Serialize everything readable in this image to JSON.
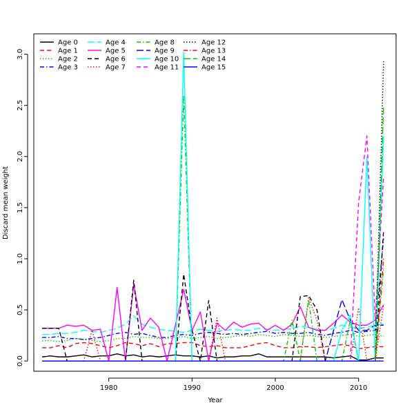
{
  "chart_data": {
    "type": "line",
    "title": "",
    "xlabel": "Year",
    "ylabel": "Discard mean weight",
    "xlim": [
      1971,
      2014.5
    ],
    "ylim": [
      -0.1,
      3.2
    ],
    "x_ticks": [
      1980,
      1990,
      2000,
      2010
    ],
    "x_tick_labels": [
      "1980",
      "1990",
      "2000",
      "2010"
    ],
    "y_ticks": [
      0.0,
      0.5,
      1.0,
      1.5,
      2.0,
      2.5,
      3.0
    ],
    "y_tick_labels": [
      "0.0",
      "0.5",
      "1.0",
      "1.5",
      "2.0",
      "2.5",
      "3.0"
    ],
    "grid": false,
    "legend_position": "top-left",
    "x": [
      1972,
      1973,
      1974,
      1975,
      1976,
      1977,
      1978,
      1979,
      1980,
      1981,
      1982,
      1983,
      1984,
      1985,
      1986,
      1987,
      1988,
      1989,
      1990,
      1991,
      1992,
      1993,
      1994,
      1995,
      1996,
      1997,
      1998,
      1999,
      2000,
      2001,
      2002,
      2003,
      2004,
      2005,
      2006,
      2007,
      2008,
      2009,
      2010,
      2011,
      2012,
      2013
    ],
    "series": [
      {
        "name": "Age 0",
        "color": "#000000",
        "dash": "solid",
        "values": [
          0.04,
          0.05,
          0.04,
          0.04,
          0.05,
          0.06,
          0.04,
          0.05,
          0.05,
          0.07,
          0.05,
          0.06,
          0.04,
          0.05,
          0.04,
          0.05,
          0.06,
          0.05,
          0.05,
          0.04,
          0.05,
          0.03,
          0.04,
          0.04,
          0.05,
          0.05,
          0.07,
          0.04,
          0.04,
          0.04,
          0.04,
          0.04,
          0.04,
          0.04,
          0.04,
          0.03,
          0.04,
          0.05,
          0.01,
          0.01,
          0.03,
          0.03
        ]
      },
      {
        "name": "Age 1",
        "color": "#ff0000",
        "dash": "dashed",
        "values": [
          0.13,
          0.13,
          0.15,
          0.13,
          0.17,
          0.18,
          0.17,
          0.15,
          0.13,
          0.15,
          0.18,
          0.17,
          0.15,
          0.17,
          0.14,
          0.17,
          0.17,
          0.18,
          0.18,
          0.15,
          0.14,
          0.15,
          0.13,
          0.13,
          0.13,
          0.15,
          0.17,
          0.18,
          0.15,
          0.13,
          0.13,
          0.14,
          0.14,
          0.13,
          0.14,
          0.15,
          0.16,
          0.15,
          0.12,
          0.13,
          0.14,
          0.14
        ]
      },
      {
        "name": "Age 2",
        "color": "#00cc00",
        "dash": "dotted",
        "values": [
          0.2,
          0.2,
          0.19,
          0.2,
          0.22,
          0.21,
          0.2,
          0.19,
          0.2,
          0.22,
          0.22,
          0.24,
          0.23,
          0.23,
          0.22,
          0.22,
          0.23,
          0.24,
          0.22,
          0.23,
          0.24,
          0.22,
          0.23,
          0.24,
          0.25,
          0.24,
          0.26,
          0.25,
          0.24,
          0.26,
          0.25,
          0.24,
          0.25,
          0.24,
          0.23,
          0.24,
          0.25,
          0.26,
          0.24,
          0.25,
          0.26,
          0.24
        ]
      },
      {
        "name": "Age 3",
        "color": "#0000ff",
        "dash": "dashdot",
        "values": [
          0.23,
          0.23,
          0.24,
          0.22,
          0.22,
          0.21,
          0.22,
          0.23,
          0.25,
          0.27,
          0.28,
          0.26,
          0.27,
          0.25,
          0.23,
          0.23,
          0.25,
          0.26,
          0.25,
          0.27,
          0.28,
          0.27,
          0.26,
          0.27,
          0.26,
          0.27,
          0.28,
          0.29,
          0.27,
          0.28,
          0.27,
          0.27,
          0.28,
          0.26,
          0.25,
          0.27,
          0.28,
          0.3,
          0.28,
          0.29,
          0.3,
          1.2
        ]
      },
      {
        "name": "Age 4",
        "color": "#00ffff",
        "dash": "longdash",
        "values": [
          0.26,
          0.26,
          0.27,
          0.27,
          0.28,
          0.3,
          0.29,
          0.28,
          0.3,
          0.32,
          0.36,
          0.44,
          0.36,
          0.33,
          0.31,
          0.3,
          0.29,
          0.28,
          0.3,
          0.31,
          0.3,
          0.29,
          0.3,
          0.31,
          0.3,
          0.3,
          0.32,
          0.31,
          0.3,
          0.31,
          0.32,
          0.34,
          0.33,
          0.31,
          0.3,
          0.32,
          0.35,
          0.33,
          0.32,
          0.33,
          0.35,
          0.36
        ]
      },
      {
        "name": "Age 5",
        "color": "#ff00ff",
        "dash": "solid",
        "values": [
          0.32,
          0.32,
          0.32,
          0.35,
          0.34,
          0.35,
          0.3,
          0.31,
          0.0,
          0.72,
          0.0,
          0.75,
          0.3,
          0.42,
          0.33,
          0.0,
          0.35,
          0.7,
          0.3,
          0.48,
          0.0,
          0.37,
          0.3,
          0.38,
          0.33,
          0.36,
          0.37,
          0.3,
          0.35,
          0.3,
          0.36,
          0.53,
          0.33,
          0.3,
          0.3,
          0.37,
          0.45,
          0.38,
          0.35,
          0.35,
          0.4,
          0.55
        ]
      },
      {
        "name": "Age 6",
        "color": "#000000",
        "dash": "dashed",
        "values": [
          0.32,
          0.32,
          0.32,
          0.0,
          0.0,
          0.0,
          0.0,
          0.0,
          0.0,
          0.0,
          0.0,
          0.79,
          0.0,
          0.0,
          0.0,
          0.0,
          0.0,
          0.85,
          0.3,
          0.0,
          0.59,
          0.0,
          0.0,
          0.0,
          0.0,
          0.0,
          0.0,
          0.0,
          0.0,
          0.0,
          0.0,
          0.63,
          0.64,
          0.5,
          0.0,
          0.0,
          0.0,
          0.0,
          0.0,
          0.0,
          0.0,
          1.28
        ]
      },
      {
        "name": "Age 7",
        "color": "#ff0000",
        "dash": "dotted",
        "values": [
          0.0,
          0.0,
          0.0,
          0.0,
          0.0,
          0.0,
          0.3,
          0.0,
          0.0,
          0.0,
          0.0,
          0.0,
          0.0,
          0.0,
          0.0,
          0.0,
          0.0,
          0.0,
          0.0,
          0.0,
          0.0,
          0.42,
          0.0,
          0.0,
          0.0,
          0.0,
          0.0,
          0.0,
          0.0,
          0.0,
          0.0,
          0.0,
          0.62,
          0.4,
          0.0,
          0.0,
          0.0,
          0.0,
          0.52,
          0.0,
          0.0,
          0.55
        ]
      },
      {
        "name": "Age 8",
        "color": "#00cc00",
        "dash": "dashdot",
        "values": [
          0.0,
          0.0,
          0.0,
          0.0,
          0.0,
          0.0,
          0.0,
          0.0,
          0.0,
          0.0,
          0.0,
          0.0,
          0.0,
          0.0,
          0.0,
          0.0,
          0.0,
          2.6,
          0.0,
          0.0,
          0.0,
          0.0,
          0.0,
          0.0,
          0.0,
          0.0,
          0.0,
          0.0,
          0.0,
          0.0,
          0.4,
          0.0,
          0.6,
          0.0,
          0.0,
          0.0,
          0.0,
          0.4,
          0.0,
          0.0,
          0.0,
          0.9
        ]
      },
      {
        "name": "Age 9",
        "color": "#0000ff",
        "dash": "longdash",
        "values": [
          0.0,
          0.0,
          0.0,
          0.0,
          0.0,
          0.0,
          0.0,
          0.0,
          0.0,
          0.0,
          0.0,
          0.0,
          0.0,
          0.0,
          0.0,
          0.0,
          0.0,
          0.0,
          0.0,
          0.0,
          0.0,
          0.0,
          0.0,
          0.0,
          0.0,
          0.0,
          0.0,
          0.0,
          0.0,
          0.0,
          0.0,
          0.0,
          0.0,
          0.0,
          0.0,
          0.3,
          0.6,
          0.4,
          0.3,
          0.3,
          0.35,
          0.35
        ]
      },
      {
        "name": "Age 10",
        "color": "#00ffff",
        "dash": "solid",
        "values": [
          0.0,
          0.0,
          0.0,
          0.0,
          0.0,
          0.0,
          0.0,
          0.0,
          0.0,
          0.0,
          0.0,
          0.0,
          0.0,
          0.0,
          0.0,
          0.0,
          0.0,
          3.02,
          0.0,
          0.0,
          0.0,
          0.0,
          0.0,
          0.0,
          0.0,
          0.0,
          0.0,
          0.0,
          0.0,
          0.0,
          0.0,
          0.0,
          0.0,
          0.0,
          0.0,
          0.0,
          0.3,
          0.45,
          0.0,
          2.0,
          0.0,
          2.2
        ]
      },
      {
        "name": "Age 11",
        "color": "#ff00ff",
        "dash": "dashed",
        "values": [
          0.0,
          0.0,
          0.0,
          0.0,
          0.0,
          0.0,
          0.0,
          0.0,
          0.0,
          0.0,
          0.0,
          0.0,
          0.0,
          0.0,
          0.0,
          0.0,
          0.0,
          0.0,
          0.0,
          0.0,
          0.0,
          0.0,
          0.0,
          0.0,
          0.0,
          0.0,
          0.0,
          0.0,
          0.0,
          0.0,
          0.0,
          0.0,
          0.0,
          0.0,
          0.0,
          0.0,
          0.0,
          0.0,
          1.55,
          2.2,
          0.4,
          1.8
        ]
      },
      {
        "name": "Age 12",
        "color": "#000000",
        "dash": "dotted",
        "values": [
          0.0,
          0.0,
          0.0,
          0.0,
          0.0,
          0.0,
          0.0,
          0.0,
          0.0,
          0.0,
          0.0,
          0.0,
          0.0,
          0.0,
          0.0,
          0.0,
          0.0,
          0.0,
          0.0,
          0.0,
          0.0,
          0.0,
          0.0,
          0.0,
          0.0,
          0.0,
          0.0,
          0.0,
          0.0,
          0.0,
          0.0,
          0.0,
          0.0,
          0.0,
          0.0,
          0.0,
          0.0,
          0.0,
          0.0,
          0.0,
          0.0,
          2.93
        ]
      },
      {
        "name": "Age 13",
        "color": "#ff0000",
        "dash": "dashdot",
        "values": [
          0.0,
          0.0,
          0.0,
          0.0,
          0.0,
          0.0,
          0.0,
          0.0,
          0.0,
          0.0,
          0.0,
          0.0,
          0.0,
          0.0,
          0.0,
          0.0,
          0.0,
          0.0,
          0.0,
          0.0,
          0.0,
          0.0,
          0.0,
          0.0,
          0.0,
          0.0,
          0.0,
          0.0,
          0.0,
          0.0,
          0.0,
          0.0,
          0.0,
          0.0,
          0.0,
          0.0,
          0.0,
          0.0,
          0.0,
          0.0,
          0.0,
          1.0
        ]
      },
      {
        "name": "Age 14",
        "color": "#00cc00",
        "dash": "longdash",
        "values": [
          0.0,
          0.0,
          0.0,
          0.0,
          0.0,
          0.0,
          0.0,
          0.0,
          0.0,
          0.0,
          0.0,
          0.0,
          0.0,
          0.0,
          0.0,
          0.0,
          0.0,
          0.0,
          0.0,
          0.0,
          0.0,
          0.0,
          0.0,
          0.0,
          0.0,
          0.0,
          0.0,
          0.0,
          0.0,
          0.0,
          0.0,
          0.0,
          0.0,
          0.0,
          0.0,
          0.0,
          0.0,
          0.0,
          0.0,
          0.0,
          0.0,
          2.5
        ]
      },
      {
        "name": "Age 15",
        "color": "#0000ff",
        "dash": "solid",
        "values": [
          0.0,
          0.0,
          0.0,
          0.0,
          0.0,
          0.0,
          0.0,
          0.0,
          0.0,
          0.0,
          0.0,
          0.0,
          0.0,
          0.0,
          0.0,
          0.0,
          0.0,
          0.0,
          0.0,
          0.0,
          0.0,
          0.0,
          0.0,
          0.0,
          0.0,
          0.0,
          0.0,
          0.0,
          0.0,
          0.0,
          0.0,
          0.0,
          0.0,
          0.0,
          0.0,
          0.0,
          0.0,
          0.0,
          0.0,
          0.0,
          0.0,
          0.0
        ]
      }
    ]
  }
}
